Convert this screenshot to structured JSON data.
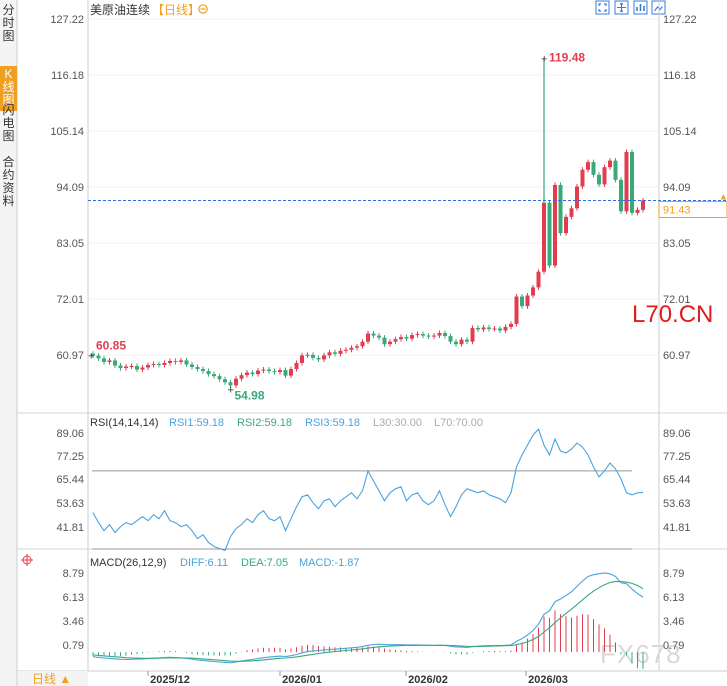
{
  "sidebar": {
    "tabs": [
      {
        "label": "分时图",
        "active": false
      },
      {
        "label": "K线图",
        "active": true
      },
      {
        "label": "闪电图",
        "active": false
      },
      {
        "label": "合约资料",
        "active": false
      }
    ],
    "period_button": "日线 ▲"
  },
  "header": {
    "title": "美原油连续",
    "period_tag": "【日线】",
    "settings_icon": "gear-icon",
    "toolbar_icons": [
      "fullscreen-icon",
      "move-icon",
      "chart-type-icon",
      "image-icon"
    ]
  },
  "watermarks": [
    "L70.CN",
    "FX678"
  ],
  "colors": {
    "up": "#e23d4f",
    "down": "#3aa97a",
    "axis_text": "#555555",
    "grid": "#e6e6e6",
    "current_line": "#2a6fd6",
    "price_tag": "#f0a020",
    "rsi_line": "#4aa3df",
    "macd_diff": "#4aa3df",
    "macd_dea": "#f0a020",
    "rsi_threshold": "#999999"
  },
  "chart_data": [
    {
      "type": "candlestick",
      "title": "美原油连续",
      "y_ticks": [
        127.22,
        116.18,
        105.14,
        94.09,
        83.05,
        72.01,
        60.97
      ],
      "ylim": [
        51.5,
        127.22
      ],
      "x_ticks": [
        "2025/12",
        "2026/01",
        "2026/02",
        "2026/03"
      ],
      "current_price": 91.43,
      "annotations": {
        "high": 119.48,
        "low": 54.98,
        "left_start": 60.85
      },
      "close_series": [
        60.85,
        60.3,
        59.6,
        59.9,
        58.9,
        58.4,
        58.7,
        58.8,
        58.1,
        58.5,
        59.0,
        59.2,
        59.0,
        59.4,
        59.8,
        59.6,
        59.9,
        59.1,
        58.6,
        58.2,
        57.8,
        57.2,
        56.8,
        56.2,
        55.6,
        54.98,
        56.3,
        57.0,
        57.5,
        57.2,
        57.9,
        58.1,
        57.8,
        57.6,
        58.0,
        56.9,
        58.2,
        59.4,
        60.9,
        61.0,
        60.4,
        60.1,
        60.9,
        61.5,
        61.2,
        61.8,
        62.0,
        62.4,
        62.7,
        63.6,
        65.2,
        64.8,
        64.4,
        63.1,
        63.6,
        64.1,
        64.5,
        64.2,
        64.9,
        65.1,
        64.8,
        64.6,
        64.8,
        65.3,
        64.7,
        63.6,
        63.1,
        64.0,
        63.6,
        66.3,
        66.0,
        66.4,
        66.1,
        66.2,
        65.8,
        66.5,
        67.1,
        72.5,
        70.6,
        72.7,
        74.3,
        77.4,
        91.0,
        78.6,
        94.5,
        85.0,
        88.2,
        89.9,
        94.2,
        97.5,
        99.0,
        96.5,
        94.6,
        98.0,
        99.3,
        95.5,
        89.3,
        101.0,
        89.0,
        89.6,
        91.43
      ],
      "open_series": [
        61.2,
        60.85,
        60.3,
        59.6,
        59.9,
        58.9,
        58.4,
        58.7,
        58.8,
        58.1,
        58.5,
        59.0,
        59.2,
        59.0,
        59.4,
        59.8,
        59.6,
        59.9,
        59.1,
        58.6,
        58.2,
        57.8,
        57.2,
        56.8,
        56.2,
        55.6,
        54.98,
        56.3,
        57.0,
        57.5,
        57.2,
        57.9,
        58.1,
        57.8,
        57.6,
        58.0,
        56.9,
        58.2,
        59.4,
        60.9,
        61.0,
        60.4,
        60.1,
        60.9,
        61.5,
        61.2,
        61.8,
        62.0,
        62.4,
        62.7,
        63.6,
        65.2,
        64.8,
        64.4,
        63.1,
        63.6,
        64.1,
        64.5,
        64.2,
        64.9,
        65.1,
        64.8,
        64.6,
        64.8,
        65.3,
        64.7,
        63.6,
        63.1,
        64.0,
        63.6,
        66.3,
        66.0,
        66.4,
        66.1,
        66.2,
        65.8,
        66.5,
        67.1,
        72.5,
        70.6,
        72.7,
        74.3,
        77.4,
        91.0,
        78.6,
        94.5,
        85.0,
        88.2,
        89.9,
        94.2,
        97.5,
        99.0,
        96.5,
        94.6,
        98.0,
        99.3,
        95.5,
        89.3,
        101.0,
        89.0,
        89.6
      ]
    },
    {
      "type": "line",
      "title": "RSI(14,14,14)",
      "series_labels": [
        "RSI1:59.18",
        "RSI2:59.18",
        "RSI3:59.18",
        "L30:30.00",
        "L70:70.00"
      ],
      "y_ticks": [
        89.06,
        77.25,
        65.44,
        53.63,
        41.81
      ],
      "ylim": [
        30.0,
        92.0
      ],
      "threshold": 70.0,
      "values": [
        49,
        44,
        40,
        43,
        39,
        42,
        44,
        43,
        45,
        47,
        45,
        48,
        46,
        50,
        45,
        44,
        42,
        43,
        40,
        36,
        38,
        34,
        32,
        31,
        30,
        37,
        41,
        43,
        46,
        44,
        48,
        50,
        46,
        45,
        47,
        40,
        46,
        52,
        57,
        58,
        54,
        51,
        55,
        56,
        52,
        55,
        57,
        59,
        56,
        60,
        70,
        65,
        60,
        55,
        59,
        61,
        62,
        55,
        58,
        59,
        55,
        53,
        55,
        60,
        53,
        47,
        52,
        58,
        61,
        60,
        59,
        60,
        58,
        57,
        56,
        54,
        59,
        72,
        78,
        83,
        88,
        91,
        83,
        78,
        86,
        80,
        79,
        81,
        84,
        82,
        78,
        72,
        67,
        70,
        74,
        71,
        66,
        59,
        58,
        59,
        59.18
      ]
    },
    {
      "type": "macd",
      "title": "MACD(26,12,9)",
      "series_labels": [
        "DIFF:6.11",
        "DEA:7.05",
        "MACD:-1.87"
      ],
      "y_ticks": [
        8.79,
        6.13,
        3.46,
        0.79
      ],
      "ylim": [
        -1.2,
        9.8
      ],
      "diff": [
        -0.5,
        -0.6,
        -0.65,
        -0.7,
        -0.75,
        -0.8,
        -0.82,
        -0.8,
        -0.78,
        -0.76,
        -0.72,
        -0.68,
        -0.64,
        -0.6,
        -0.58,
        -0.6,
        -0.64,
        -0.7,
        -0.78,
        -0.86,
        -0.92,
        -0.98,
        -1.04,
        -1.1,
        -1.14,
        -1.18,
        -1.1,
        -1.0,
        -0.9,
        -0.82,
        -0.72,
        -0.62,
        -0.56,
        -0.5,
        -0.44,
        -0.5,
        -0.4,
        -0.26,
        -0.08,
        0.06,
        0.14,
        0.18,
        0.24,
        0.3,
        0.32,
        0.38,
        0.42,
        0.48,
        0.54,
        0.62,
        0.76,
        0.84,
        0.88,
        0.84,
        0.82,
        0.82,
        0.82,
        0.8,
        0.8,
        0.8,
        0.78,
        0.76,
        0.74,
        0.76,
        0.74,
        0.66,
        0.58,
        0.56,
        0.52,
        0.6,
        0.66,
        0.7,
        0.72,
        0.74,
        0.74,
        0.76,
        0.8,
        1.2,
        1.5,
        1.9,
        2.4,
        3.1,
        4.2,
        4.6,
        5.6,
        5.9,
        6.3,
        6.7,
        7.3,
        7.9,
        8.4,
        8.6,
        8.7,
        8.8,
        8.7,
        8.4,
        7.7,
        7.6,
        7.0,
        6.5,
        6.11
      ],
      "dea": [
        -0.3,
        -0.36,
        -0.42,
        -0.47,
        -0.52,
        -0.57,
        -0.62,
        -0.65,
        -0.67,
        -0.69,
        -0.69,
        -0.69,
        -0.68,
        -0.66,
        -0.65,
        -0.64,
        -0.64,
        -0.65,
        -0.67,
        -0.71,
        -0.75,
        -0.8,
        -0.85,
        -0.9,
        -0.95,
        -1.0,
        -1.02,
        -1.02,
        -1.0,
        -0.97,
        -0.92,
        -0.86,
        -0.8,
        -0.74,
        -0.68,
        -0.65,
        -0.6,
        -0.53,
        -0.44,
        -0.34,
        -0.25,
        -0.16,
        -0.08,
        0.0,
        0.06,
        0.12,
        0.18,
        0.24,
        0.3,
        0.36,
        0.44,
        0.52,
        0.59,
        0.64,
        0.67,
        0.7,
        0.72,
        0.74,
        0.75,
        0.76,
        0.76,
        0.76,
        0.76,
        0.76,
        0.76,
        0.74,
        0.71,
        0.68,
        0.65,
        0.64,
        0.64,
        0.65,
        0.66,
        0.68,
        0.69,
        0.71,
        0.72,
        0.82,
        0.96,
        1.15,
        1.4,
        1.74,
        2.23,
        2.7,
        3.28,
        3.8,
        4.3,
        4.78,
        5.28,
        5.8,
        6.32,
        6.77,
        7.16,
        7.48,
        7.73,
        7.86,
        7.83,
        7.78,
        7.63,
        7.4,
        7.05
      ],
      "macd": [
        -0.4,
        -0.48,
        -0.46,
        -0.46,
        -0.46,
        -0.46,
        -0.4,
        -0.3,
        -0.22,
        -0.14,
        -0.06,
        0.02,
        0.08,
        0.12,
        0.14,
        0.08,
        0.0,
        -0.1,
        -0.22,
        -0.3,
        -0.34,
        -0.36,
        -0.38,
        -0.4,
        -0.38,
        -0.36,
        -0.16,
        0.04,
        0.2,
        0.3,
        0.4,
        0.48,
        0.48,
        0.48,
        0.48,
        0.3,
        0.4,
        0.54,
        0.72,
        0.8,
        0.78,
        0.68,
        0.64,
        0.6,
        0.52,
        0.52,
        0.48,
        0.48,
        0.48,
        0.52,
        0.64,
        0.64,
        0.58,
        0.4,
        0.3,
        0.24,
        0.2,
        0.12,
        0.1,
        0.08,
        0.04,
        0.0,
        -0.04,
        0.0,
        -0.04,
        -0.16,
        -0.26,
        -0.24,
        -0.26,
        -0.08,
        0.04,
        0.1,
        0.12,
        0.12,
        0.1,
        0.1,
        0.16,
        0.76,
        1.08,
        1.5,
        2.0,
        2.72,
        3.94,
        3.8,
        4.64,
        4.2,
        4.0,
        3.84,
        4.04,
        4.2,
        4.16,
        3.66,
        3.08,
        2.64,
        1.94,
        1.08,
        -0.26,
        -0.36,
        -1.26,
        -1.8,
        -1.87
      ]
    }
  ]
}
